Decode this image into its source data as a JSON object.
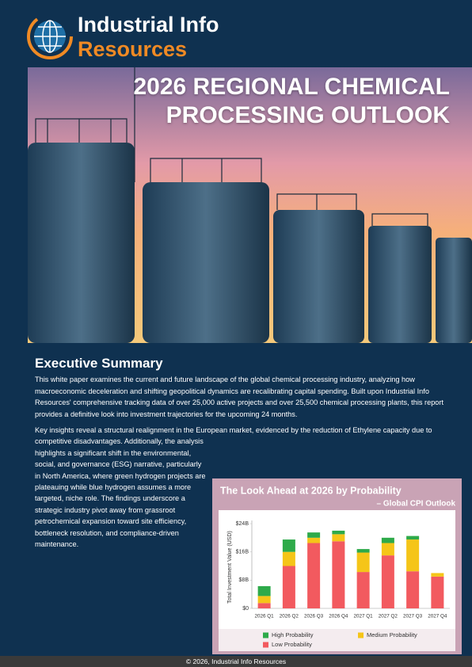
{
  "logo": {
    "line1": "Industrial Info",
    "line2": "Resources"
  },
  "title_lines": [
    "2026 REGIONAL CHEMICAL",
    "PROCESSING OUTLOOK"
  ],
  "executive_summary": {
    "heading": "Executive Summary",
    "paragraphs": [
      "This white paper examines the current and future landscape of the global chemical processing industry, analyzing how macroeconomic deceleration and shifting geopolitical dynamics are recalibrating capital spending. Built upon Industrial Info Resources' comprehensive tracking data of over 25,000 active projects and over 25,500 chemical processing plants, this report provides a definitive look into investment trajectories for the upcoming 24 months.",
      "Key insights reveal a structural realignment in the European market, evidenced by the reduction of Ethylene capacity due to competitive disadvantages. Additionally, the analysis highlights a significant shift in the environmental, social, and governance (ESG) narrative, particularly in North America, where green hydrogen projects are plateauing while blue hydrogen assumes a more targeted, niche role. The findings underscore a strategic industry pivot away from grassroot petrochemical expansion toward site efficiency, bottleneck resolution, and compliance-driven maintenance."
    ]
  },
  "chart_data": {
    "type": "stacked_bar",
    "title": "The Look Ahead at 2026 by Probability",
    "subtitle": "– Global CPI Outlook",
    "y_label": "Total Investment Value (USD)",
    "categories": [
      "2026 Q1",
      "2026 Q2",
      "2026 Q3",
      "2026 Q4",
      "2027 Q1",
      "2027 Q2",
      "2027 Q3",
      "2027 Q4"
    ],
    "series": [
      {
        "name": "High Probability",
        "color": "#2eaa4a",
        "values": [
          2.8,
          3.5,
          1.5,
          1,
          1,
          1.5,
          1,
          0
        ]
      },
      {
        "name": "Medium Probability",
        "color": "#f5c518",
        "values": [
          2,
          4,
          1.5,
          2,
          5.5,
          3.5,
          9,
          1
        ]
      },
      {
        "name": "Low Probability",
        "color": "#f25a5f",
        "values": [
          1.5,
          12,
          18.5,
          19,
          10.3,
          15,
          10.5,
          9
        ]
      }
    ],
    "ylim": [
      0,
      24
    ],
    "yticks": [
      {
        "value": 0,
        "label": "$0"
      },
      {
        "value": 8,
        "label": "$8B"
      },
      {
        "value": 16,
        "label": "$16B"
      },
      {
        "value": 24,
        "label": "$24B"
      }
    ],
    "grid": false
  },
  "footer": "© 2026, Industrial Info Resources"
}
